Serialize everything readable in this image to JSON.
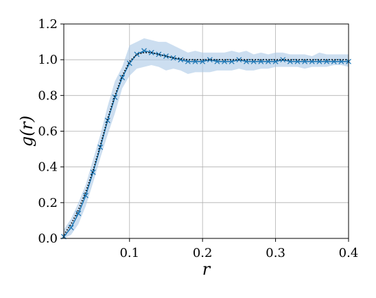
{
  "chart_data": {
    "type": "line",
    "xlabel": "r",
    "ylabel": "g(r)",
    "xlim": [
      0.01,
      0.4
    ],
    "ylim": [
      0.0,
      1.2
    ],
    "grid": true,
    "xticks": [
      {
        "value": 0.1,
        "label": "0.1"
      },
      {
        "value": 0.2,
        "label": "0.2"
      },
      {
        "value": 0.3,
        "label": "0.3"
      },
      {
        "value": 0.4,
        "label": "0.4"
      }
    ],
    "yticks": [
      {
        "value": 0.0,
        "label": "0.0"
      },
      {
        "value": 0.2,
        "label": "0.2"
      },
      {
        "value": 0.4,
        "label": "0.4"
      },
      {
        "value": 0.6,
        "label": "0.6"
      },
      {
        "value": 0.8,
        "label": "0.8"
      },
      {
        "value": 1.0,
        "label": "1.0"
      },
      {
        "value": 1.2,
        "label": "1.2"
      }
    ],
    "colors": {
      "series_line": "#1f77b4",
      "band_fill": "#aac8e6",
      "reference_line": "#000000"
    },
    "series": [
      {
        "style": "solid-line-with-x-markers",
        "x": [
          0.01,
          0.02,
          0.03,
          0.04,
          0.05,
          0.06,
          0.07,
          0.08,
          0.09,
          0.1,
          0.11,
          0.12,
          0.13,
          0.14,
          0.15,
          0.16,
          0.17,
          0.18,
          0.19,
          0.2,
          0.21,
          0.22,
          0.23,
          0.24,
          0.25,
          0.26,
          0.27,
          0.28,
          0.29,
          0.3,
          0.31,
          0.32,
          0.33,
          0.34,
          0.35,
          0.36,
          0.37,
          0.38,
          0.39,
          0.4
        ],
        "y": [
          0.01,
          0.06,
          0.14,
          0.24,
          0.37,
          0.51,
          0.66,
          0.79,
          0.9,
          0.98,
          1.03,
          1.05,
          1.04,
          1.03,
          1.02,
          1.01,
          1.0,
          0.99,
          0.99,
          0.99,
          1.0,
          0.99,
          0.99,
          0.99,
          1.0,
          0.99,
          0.99,
          0.99,
          0.99,
          0.99,
          1.0,
          0.99,
          0.99,
          0.99,
          0.99,
          0.99,
          0.99,
          0.99,
          0.99,
          0.99
        ]
      },
      {
        "style": "dotted-reference-line",
        "x": [
          0.01,
          0.02,
          0.03,
          0.04,
          0.05,
          0.06,
          0.07,
          0.08,
          0.09,
          0.1,
          0.11,
          0.12,
          0.13,
          0.14,
          0.15,
          0.16,
          0.17,
          0.18,
          0.19,
          0.2,
          0.22,
          0.25,
          0.3,
          0.35,
          0.4
        ],
        "y": [
          0.02,
          0.08,
          0.16,
          0.26,
          0.38,
          0.52,
          0.67,
          0.8,
          0.91,
          0.99,
          1.03,
          1.04,
          1.04,
          1.03,
          1.02,
          1.01,
          1.005,
          1.0,
          1.0,
          1.0,
          1.0,
          1.0,
          1.0,
          1.0,
          1.0
        ]
      }
    ],
    "band": {
      "x": [
        0.01,
        0.02,
        0.03,
        0.04,
        0.05,
        0.06,
        0.07,
        0.08,
        0.09,
        0.1,
        0.11,
        0.12,
        0.13,
        0.14,
        0.15,
        0.16,
        0.17,
        0.18,
        0.19,
        0.2,
        0.21,
        0.22,
        0.23,
        0.24,
        0.25,
        0.26,
        0.27,
        0.28,
        0.29,
        0.3,
        0.31,
        0.32,
        0.33,
        0.34,
        0.35,
        0.36,
        0.37,
        0.38,
        0.39,
        0.4
      ],
      "upper": [
        0.05,
        0.11,
        0.2,
        0.3,
        0.44,
        0.58,
        0.74,
        0.88,
        0.96,
        1.08,
        1.1,
        1.12,
        1.11,
        1.1,
        1.1,
        1.08,
        1.06,
        1.04,
        1.05,
        1.04,
        1.04,
        1.04,
        1.04,
        1.05,
        1.04,
        1.05,
        1.03,
        1.04,
        1.03,
        1.04,
        1.04,
        1.03,
        1.03,
        1.03,
        1.02,
        1.04,
        1.03,
        1.03,
        1.03,
        1.03
      ],
      "lower": [
        0.0,
        0.02,
        0.08,
        0.18,
        0.31,
        0.45,
        0.58,
        0.7,
        0.84,
        0.91,
        0.95,
        0.96,
        0.97,
        0.96,
        0.94,
        0.95,
        0.94,
        0.92,
        0.93,
        0.93,
        0.93,
        0.94,
        0.94,
        0.94,
        0.95,
        0.94,
        0.94,
        0.95,
        0.95,
        0.96,
        0.96,
        0.96,
        0.96,
        0.95,
        0.96,
        0.96,
        0.96,
        0.97,
        0.97,
        0.96
      ]
    }
  }
}
